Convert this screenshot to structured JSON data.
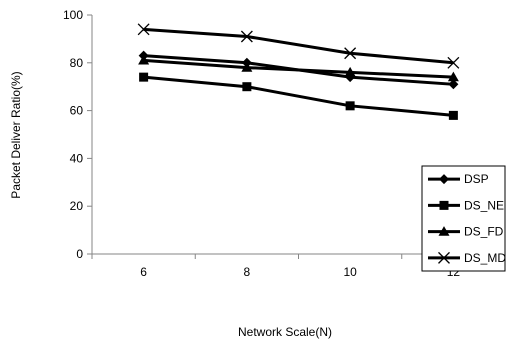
{
  "chart_data": {
    "type": "line",
    "title": "",
    "xlabel": "Network Scale(N)",
    "ylabel": "Packet Deliver Ratio(%)",
    "categories": [
      "6",
      "8",
      "10",
      "12"
    ],
    "ylim": [
      0,
      100
    ],
    "yticks": [
      0,
      20,
      40,
      60,
      80,
      100
    ],
    "grid": false,
    "legend_position": "bottom-right",
    "series": [
      {
        "name": "DSP",
        "marker": "diamond",
        "color": "#000000",
        "values": [
          83,
          80,
          74,
          71
        ]
      },
      {
        "name": "DS_NE",
        "marker": "square",
        "color": "#000000",
        "values": [
          74,
          70,
          62,
          58
        ]
      },
      {
        "name": "DS_FD",
        "marker": "triangle",
        "color": "#000000",
        "values": [
          81,
          78,
          76,
          74
        ]
      },
      {
        "name": "DS_MD",
        "marker": "x",
        "color": "#000000",
        "values": [
          94,
          91,
          84,
          80
        ]
      }
    ]
  }
}
